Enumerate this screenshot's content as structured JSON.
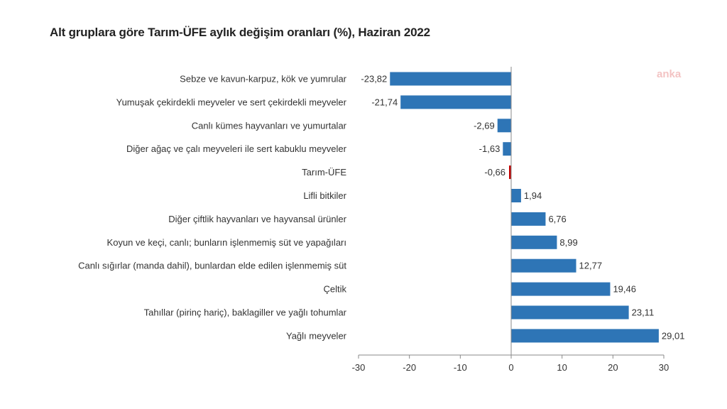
{
  "header": {
    "title": "Alt gruplara göre Tarım-ÜFE aylık değişim oranları (%), Haziran 2022"
  },
  "watermark": {
    "text": "anka"
  },
  "colors": {
    "bar": "#2e75b6",
    "highlight_bar": "#c00000",
    "axis": "#888888"
  },
  "chart_data": {
    "type": "bar",
    "orientation": "horizontal",
    "title": "Alt gruplara göre Tarım-ÜFE aylık değişim oranları (%), Haziran 2022",
    "xlabel": "",
    "ylabel": "",
    "xlim": [
      -30,
      30
    ],
    "xticks": [
      -30,
      -20,
      -10,
      0,
      10,
      20,
      30
    ],
    "grid": false,
    "legend": "none",
    "highlight_category": "Tarım-ÜFE",
    "categories": [
      "Sebze ve kavun-karpuz, kök ve yumrular",
      "Yumuşak çekirdekli meyveler ve sert çekirdekli meyveler",
      "Canlı kümes hayvanları ve yumurtalar",
      "Diğer ağaç ve çalı meyveleri ile sert kabuklu meyveler",
      "Tarım-ÜFE",
      "Lifli bitkiler",
      "Diğer çiftlik hayvanları ve hayvansal ürünler",
      "Koyun ve keçi, canlı; bunların işlenmemiş süt ve yapağıları",
      "Canlı sığırlar (manda dahil), bunlardan elde edilen işlenmemiş süt",
      "Çeltik",
      "Tahıllar (pirinç hariç), baklagiller ve yağlı tohumlar",
      "Yağlı meyveler"
    ],
    "values": [
      -23.82,
      -21.74,
      -2.69,
      -1.63,
      -0.66,
      1.94,
      6.76,
      8.99,
      12.77,
      19.46,
      23.11,
      29.01
    ],
    "value_labels": [
      "-23,82",
      "-21,74",
      "-2,69",
      "-1,63",
      "-0,66",
      "1,94",
      "6,76",
      "8,99",
      "12,77",
      "19,46",
      "23,11",
      "29,01"
    ],
    "tick_labels": [
      "-30",
      "-20",
      "-10",
      "0",
      "10",
      "20",
      "30"
    ]
  }
}
